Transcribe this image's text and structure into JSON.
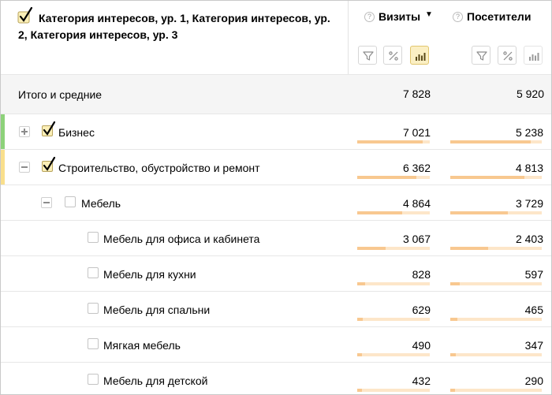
{
  "header": {
    "dimension_title": "Категория интересов, ур. 1, Категория интересов, ур. 2, Категория интересов, ур. 3",
    "help_glyph": "?",
    "columns": [
      {
        "label": "Визиты",
        "sort_arrow": "▼"
      },
      {
        "label": "Посетители"
      }
    ]
  },
  "totals": {
    "label": "Итого и средние",
    "visits": "7 828",
    "visitors": "5 920"
  },
  "rows": [
    {
      "label": "Бизнес",
      "visits": "7 021",
      "visitors": "5 238",
      "visits_share": 0.9,
      "visitors_share": 0.88,
      "checked": true,
      "expander": "plus",
      "accent": "#8dd27a"
    },
    {
      "label": "Строительство, обустройство и ремонт",
      "visits": "6 362",
      "visitors": "4 813",
      "visits_share": 0.81,
      "visitors_share": 0.81,
      "checked": true,
      "expander": "minus",
      "accent": "#f9df8c"
    },
    {
      "label": "Мебель",
      "visits": "4 864",
      "visitors": "3 729",
      "visits_share": 0.62,
      "visitors_share": 0.63,
      "checked": false,
      "expander": "minus"
    },
    {
      "label": "Мебель для офиса и кабинета",
      "visits": "3 067",
      "visitors": "2 403",
      "visits_share": 0.39,
      "visitors_share": 0.41,
      "checked": false
    },
    {
      "label": "Мебель для кухни",
      "visits": "828",
      "visitors": "597",
      "visits_share": 0.11,
      "visitors_share": 0.1,
      "checked": false
    },
    {
      "label": "Мебель для спальни",
      "visits": "629",
      "visitors": "465",
      "visits_share": 0.08,
      "visitors_share": 0.08,
      "checked": false
    },
    {
      "label": "Мягкая мебель",
      "visits": "490",
      "visitors": "347",
      "visits_share": 0.06,
      "visitors_share": 0.06,
      "checked": false
    },
    {
      "label": "Мебель для детской",
      "visits": "432",
      "visitors": "290",
      "visits_share": 0.06,
      "visitors_share": 0.05,
      "checked": false
    }
  ],
  "colors": {
    "bar_track": "#fde6c9",
    "bar_fill": "#f8c890",
    "active_button": "#fbefc3"
  },
  "icons": {
    "filter": "filter-icon",
    "percent": "percent-icon",
    "bars": "bar-chart-icon"
  }
}
